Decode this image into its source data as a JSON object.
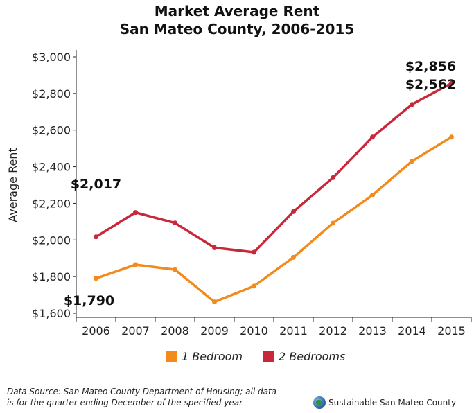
{
  "chart_data": {
    "type": "line",
    "title": "Market Average Rent",
    "subtitle": "San Mateo County, 2006-2015",
    "ylabel": "Average Rent",
    "xlabel": "",
    "ylim": [
      1600,
      3000
    ],
    "y_ticks": [
      "$1,600",
      "$1,800",
      "$2,000",
      "$2,200",
      "$2,400",
      "$2,600",
      "$2,800",
      "$3,000"
    ],
    "y_tick_values": [
      1600,
      1800,
      2000,
      2200,
      2400,
      2600,
      2800,
      3000
    ],
    "categories": [
      "2006",
      "2007",
      "2008",
      "2009",
      "2010",
      "2011",
      "2012",
      "2013",
      "2014",
      "2015"
    ],
    "series": [
      {
        "name": "1 Bedroom",
        "color": "#f28a1c",
        "values": [
          1790,
          1865,
          1838,
          1662,
          1748,
          1905,
          2092,
          2245,
          2430,
          2562
        ]
      },
      {
        "name": "2 Bedrooms",
        "color": "#c8283a",
        "values": [
          2017,
          2150,
          2093,
          1958,
          1933,
          2155,
          2340,
          2562,
          2740,
          2856
        ]
      }
    ],
    "annotations": [
      {
        "text": "$2,017",
        "series": "2 Bedrooms",
        "category": "2006"
      },
      {
        "text": "$1,790",
        "series": "1 Bedroom",
        "category": "2006"
      },
      {
        "text": "$2,856",
        "series": "2 Bedrooms",
        "category": "2015"
      },
      {
        "text": "$2,562",
        "series": "1 Bedroom",
        "category": "2015"
      }
    ],
    "legend_position": "bottom",
    "grid": false
  },
  "footer": {
    "source_line1": "Data Source: San Mateo County Department of Housing; all data",
    "source_line2": "is for the quarter ending December of the specified year.",
    "brand": "Sustainable San Mateo County",
    "brand_icon": "globe-icon"
  }
}
